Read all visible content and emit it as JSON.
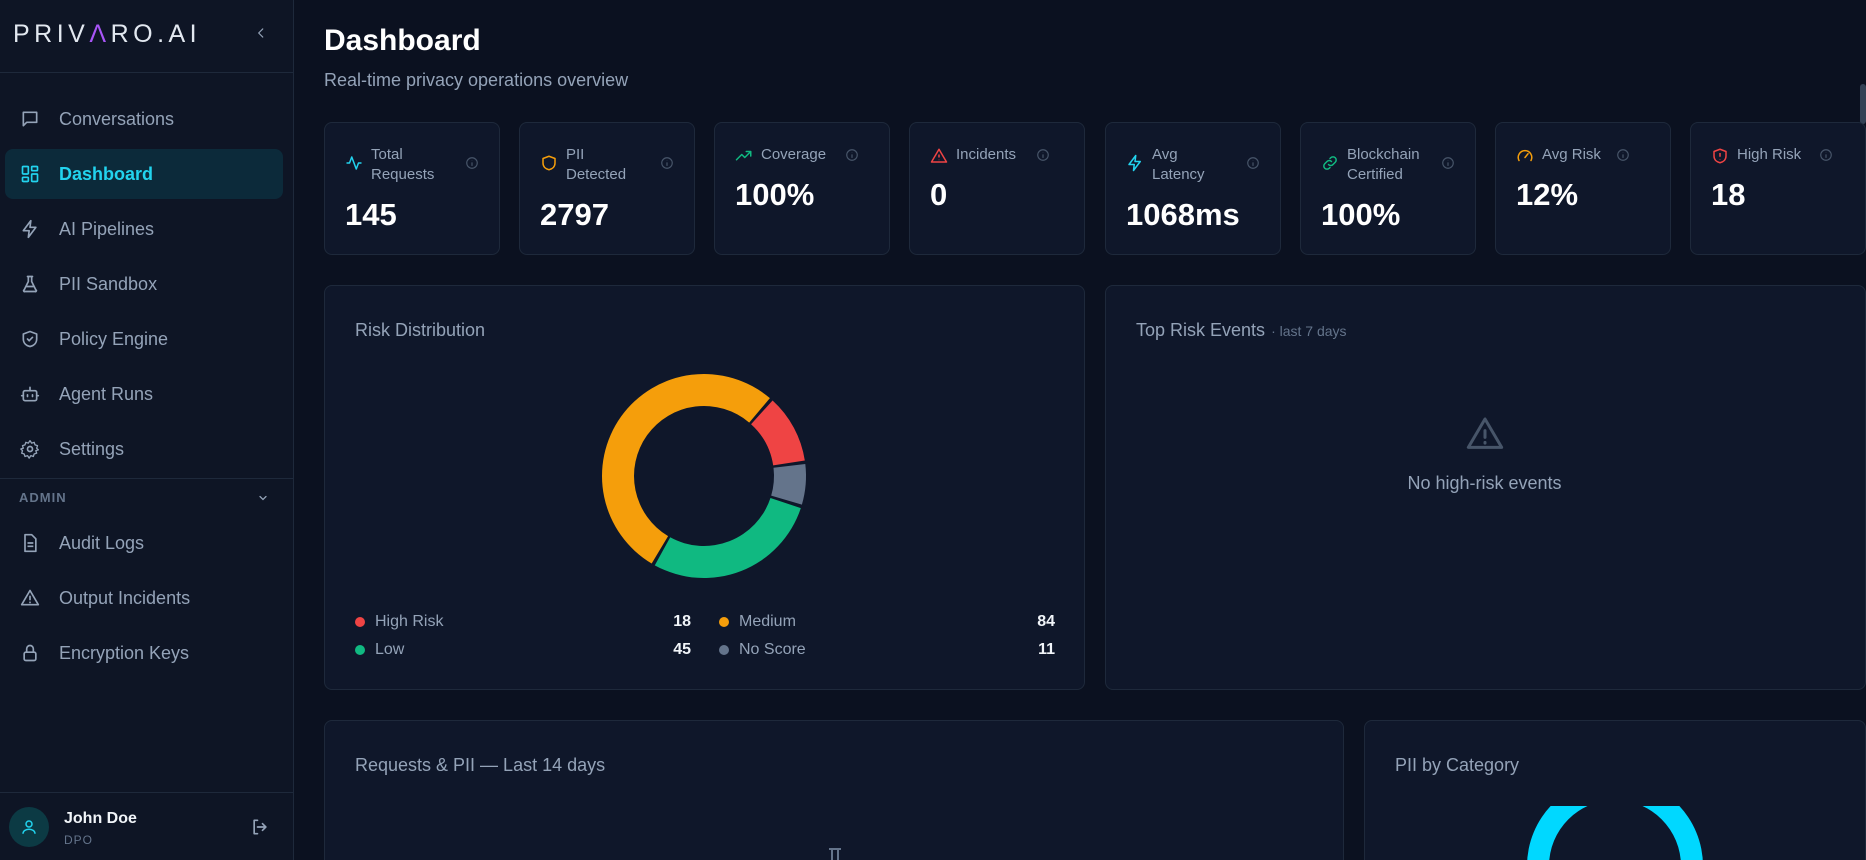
{
  "brand": {
    "logo": "PRIVARO.AI",
    "logo_left": "PRIV",
    "logo_mid": "Λ",
    "logo_right": "RO.AI"
  },
  "sidebar": {
    "items": [
      {
        "label": "Conversations",
        "icon": "chat-icon"
      },
      {
        "label": "Dashboard",
        "icon": "dashboard-icon",
        "active": true
      },
      {
        "label": "AI Pipelines",
        "icon": "bolt-icon"
      },
      {
        "label": "PII Sandbox",
        "icon": "flask-icon"
      },
      {
        "label": "Policy Engine",
        "icon": "shield-check-icon"
      },
      {
        "label": "Agent Runs",
        "icon": "bot-icon"
      },
      {
        "label": "Settings",
        "icon": "gear-icon"
      }
    ],
    "admin_label": "ADMIN",
    "admin_items": [
      {
        "label": "Audit Logs",
        "icon": "document-icon"
      },
      {
        "label": "Output Incidents",
        "icon": "warning-icon"
      },
      {
        "label": "Encryption Keys",
        "icon": "lock-icon"
      }
    ]
  },
  "user": {
    "name": "John Doe",
    "role": "DPO"
  },
  "header": {
    "title": "Dashboard",
    "subtitle": "Real-time privacy operations overview"
  },
  "kpis": [
    {
      "label": "Total Requests",
      "value": "145",
      "color": "#22d3ee"
    },
    {
      "label": "PII Detected",
      "value": "2797",
      "color": "#f59e0b"
    },
    {
      "label": "Coverage",
      "value": "100%",
      "color": "#10b981"
    },
    {
      "label": "Incidents",
      "value": "0",
      "color": "#ef4444"
    },
    {
      "label": "Avg Latency",
      "value": "1068ms",
      "color": "#22d3ee"
    },
    {
      "label": "Blockchain Certified",
      "value": "100%",
      "color": "#10b981"
    },
    {
      "label": "Avg Risk",
      "value": "12%",
      "color": "#f59e0b"
    },
    {
      "label": "High Risk",
      "value": "18",
      "color": "#ef4444"
    }
  ],
  "risk_distribution": {
    "title": "Risk Distribution",
    "legend": [
      {
        "label": "High Risk",
        "value": "18",
        "color": "#ef4444"
      },
      {
        "label": "Medium",
        "value": "84",
        "color": "#f59e0b"
      },
      {
        "label": "Low",
        "value": "45",
        "color": "#10b981"
      },
      {
        "label": "No Score",
        "value": "11",
        "color": "#64748b"
      }
    ]
  },
  "top_risk": {
    "title": "Top Risk Events",
    "subtitle": "· last 7 days",
    "empty": "No high-risk events"
  },
  "requests_chart": {
    "title": "Requests & PII — Last 14 days"
  },
  "pii_category": {
    "title": "PII by Category",
    "color": "#00d8ff"
  },
  "chart_data": {
    "type": "pie",
    "title": "Risk Distribution",
    "categories": [
      "High Risk",
      "No Score",
      "Low",
      "Medium"
    ],
    "values": [
      18,
      11,
      45,
      84
    ],
    "colors": [
      "#ef4444",
      "#64748b",
      "#10b981",
      "#f59e0b"
    ]
  }
}
